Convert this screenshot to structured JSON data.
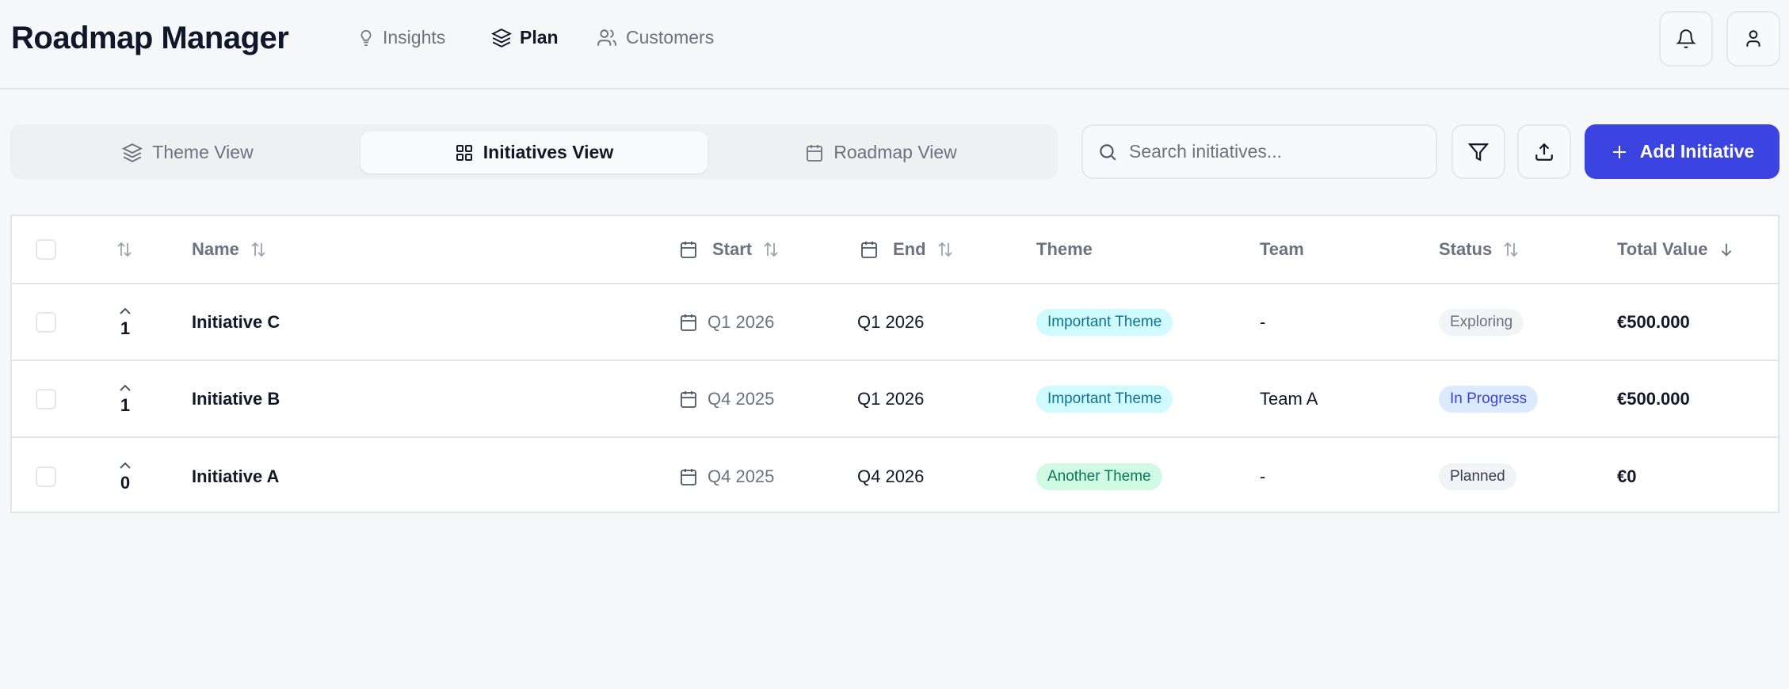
{
  "header": {
    "title": "Roadmap Manager",
    "nav": [
      {
        "label": "Insights",
        "icon": "lightbulb-icon"
      },
      {
        "label": "Plan",
        "icon": "layers-icon",
        "active": true
      },
      {
        "label": "Customers",
        "icon": "users-icon"
      }
    ]
  },
  "views": [
    {
      "label": "Theme View",
      "icon": "layers-icon"
    },
    {
      "label": "Initiatives View",
      "icon": "grid-icon",
      "active": true
    },
    {
      "label": "Roadmap View",
      "icon": "calendar-icon"
    }
  ],
  "toolbar": {
    "search_placeholder": "Search initiatives...",
    "add_label": "Add Initiative"
  },
  "colors": {
    "accent": "#3b43e0"
  },
  "table": {
    "columns": [
      "Name",
      "Start",
      "End",
      "Theme",
      "Team",
      "Status",
      "Total Value"
    ],
    "rows": [
      {
        "votes": "1",
        "name": "Initiative C",
        "start": "Q1 2026",
        "end": "Q1 2026",
        "theme": "Important Theme",
        "theme_kind": "important",
        "team": "-",
        "status": "Exploring",
        "status_kind": "exploring",
        "value": "€500.000"
      },
      {
        "votes": "1",
        "name": "Initiative B",
        "start": "Q4 2025",
        "end": "Q1 2026",
        "theme": "Important Theme",
        "theme_kind": "important",
        "team": "Team A",
        "status": "In Progress",
        "status_kind": "progress",
        "value": "€500.000"
      },
      {
        "votes": "0",
        "name": "Initiative A",
        "start": "Q4 2025",
        "end": "Q4 2026",
        "theme": "Another Theme",
        "theme_kind": "another",
        "team": "-",
        "status": "Planned",
        "status_kind": "planned",
        "value": "€0"
      }
    ]
  }
}
